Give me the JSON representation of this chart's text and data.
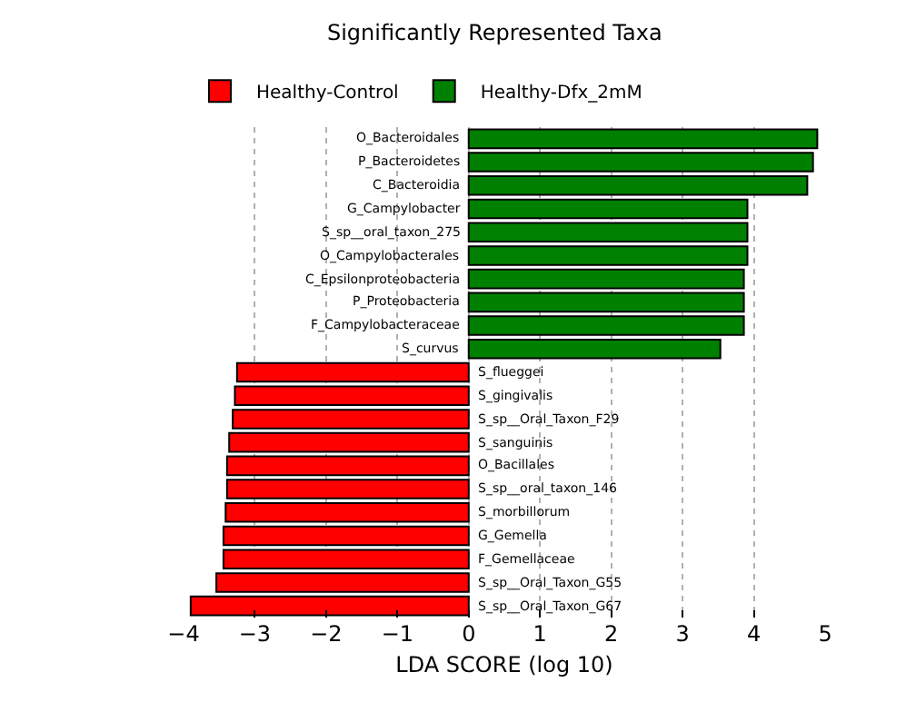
{
  "chart_data": {
    "type": "bar",
    "orientation": "horizontal",
    "title": "Significantly Represented Taxa",
    "xlabel": "LDA SCORE (log 10)",
    "categories": [
      "O_Bacteroidales",
      "P_Bacteroidetes",
      "C_Bacteroidia",
      "G_Campylobacter",
      "S_sp__oral_taxon_275",
      "O_Campylobacterales",
      "C_Epsilonproteobacteria",
      "P_Proteobacteria",
      "F_Campylobacteraceae",
      "S_curvus",
      "S_flueggei",
      "S_gingivalis",
      "S_sp__Oral_Taxon_F29",
      "S_sanguinis",
      "O_Bacillales",
      "S_sp__oral_taxon_146",
      "S_morbillorum",
      "G_Gemella",
      "F_Gemellaceae",
      "S_sp__Oral_Taxon_G55",
      "S_sp__Oral_Taxon_G67"
    ],
    "series": [
      {
        "name": "Healthy-Control",
        "color": "#ff0000",
        "values": [
          null,
          null,
          null,
          null,
          null,
          null,
          null,
          null,
          null,
          null,
          -3.25,
          -3.28,
          -3.31,
          -3.36,
          -3.39,
          -3.39,
          -3.41,
          -3.44,
          -3.44,
          -3.54,
          -3.9
        ]
      },
      {
        "name": "Healthy-Dfx_2mM",
        "color": "#008000",
        "values": [
          4.89,
          4.83,
          4.75,
          3.91,
          3.91,
          3.91,
          3.86,
          3.86,
          3.86,
          3.53,
          null,
          null,
          null,
          null,
          null,
          null,
          null,
          null,
          null,
          null,
          null
        ]
      }
    ],
    "xlim": [
      -4,
      5
    ],
    "xticks": [
      -4,
      -3,
      -2,
      -1,
      0,
      1,
      2,
      3,
      4,
      5
    ],
    "grid": "x",
    "legend": "top left",
    "line_style": "dotted"
  }
}
